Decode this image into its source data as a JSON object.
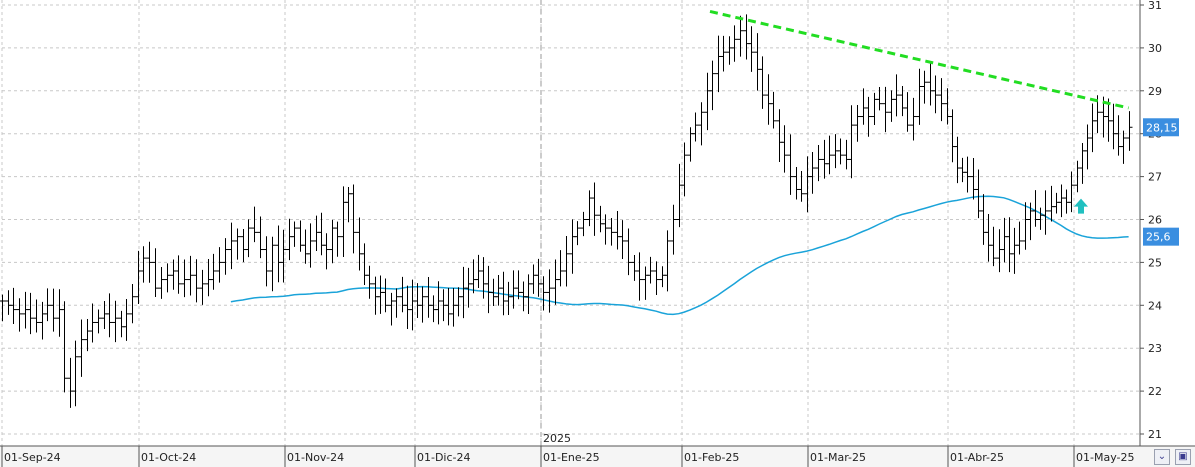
{
  "chart_data": {
    "type": "ohlc",
    "x_ticks": [
      "01-Sep-24",
      "01-Oct-24",
      "01-Nov-24",
      "01-Dic-24",
      "01-Ene-25",
      "01-Feb-25",
      "01-Mar-25",
      "01-Abr-25",
      "01-May-25"
    ],
    "year_label": "2025",
    "y_ticks": [
      "21",
      "22",
      "23",
      "24",
      "25",
      "26",
      "27",
      "28",
      "29",
      "30",
      "31"
    ],
    "ylim": [
      20.7,
      31.1
    ],
    "grid": true,
    "last_price_label": "28,15",
    "last_price": 28.15,
    "ma_label": "25,6",
    "ma_value": 25.6,
    "colors": {
      "ma": "#1aa3d9",
      "trendline": "#22dd22",
      "arrow": "#20c0c0",
      "label_bg": "#3a8ee0"
    },
    "resistance_line": {
      "from": {
        "date": "01-Feb-25",
        "price": 30.85
      },
      "to": {
        "date": "14-May-25",
        "price": 28.6
      }
    },
    "arrow_up": {
      "date": "01-May-25",
      "price": 26.3
    },
    "closes": [
      24.1,
      24.0,
      23.9,
      23.8,
      23.9,
      23.7,
      23.6,
      23.8,
      24.0,
      23.7,
      23.9,
      22.3,
      22.0,
      22.8,
      23.2,
      23.4,
      23.6,
      23.7,
      23.8,
      23.6,
      23.7,
      23.5,
      23.8,
      24.2,
      24.8,
      25.1,
      25.0,
      24.4,
      24.6,
      24.7,
      24.8,
      24.5,
      24.6,
      24.7,
      24.4,
      24.5,
      24.6,
      24.8,
      25.0,
      25.3,
      25.5,
      25.6,
      25.3,
      25.8,
      25.7,
      25.3,
      24.8,
      25.4,
      25.0,
      25.3,
      25.6,
      25.8,
      25.4,
      25.2,
      25.5,
      25.7,
      25.4,
      25.3,
      25.8,
      25.6,
      26.4,
      26.6,
      25.7,
      25.2,
      24.7,
      24.5,
      24.2,
      24.3,
      24.0,
      24.1,
      24.2,
      24.0,
      23.9,
      24.1,
      24.0,
      24.2,
      24.0,
      23.9,
      24.1,
      24.0,
      23.8,
      24.0,
      24.2,
      24.4,
      24.5,
      24.6,
      24.8,
      24.5,
      24.3,
      24.2,
      24.4,
      24.1,
      24.2,
      24.4,
      24.3,
      24.2,
      24.5,
      24.7,
      24.5,
      24.3,
      24.4,
      24.6,
      24.8,
      25.2,
      25.6,
      25.8,
      26.0,
      26.5,
      26.1,
      25.9,
      25.8,
      25.7,
      25.6,
      25.5,
      25.0,
      24.8,
      24.6,
      24.7,
      24.8,
      24.6,
      24.7,
      25.5,
      26.0,
      26.8,
      27.5,
      28.0,
      28.2,
      28.5,
      29.0,
      29.4,
      29.8,
      29.9,
      30.0,
      30.2,
      30.4,
      30.1,
      29.9,
      29.5,
      28.9,
      28.7,
      28.3,
      27.8,
      27.5,
      27.0,
      26.7,
      26.6,
      27.0,
      27.2,
      27.4,
      27.3,
      27.5,
      27.6,
      27.5,
      27.4,
      28.2,
      28.4,
      28.6,
      28.4,
      28.8,
      28.7,
      28.5,
      28.8,
      28.9,
      28.6,
      28.2,
      28.4,
      29.1,
      29.2,
      29.0,
      28.9,
      28.7,
      28.4,
      27.7,
      27.2,
      27.1,
      27.0,
      26.7,
      26.2,
      25.7,
      25.4,
      25.1,
      25.3,
      25.6,
      25.2,
      25.4,
      25.5,
      26.0,
      26.2,
      26.0,
      26.1,
      26.2,
      26.3,
      26.4,
      26.5,
      26.4,
      26.8,
      27.2,
      27.6,
      27.9,
      28.3,
      28.5,
      28.4,
      28.3,
      28.0,
      27.7,
      27.9,
      28.15
    ]
  }
}
